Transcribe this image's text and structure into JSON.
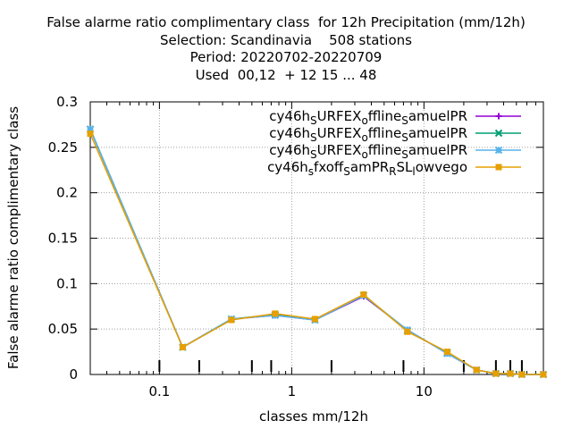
{
  "chart_data": {
    "type": "line",
    "title_lines": [
      "False alarme ratio complimentary class  for 12h Precipitation (mm/12h)",
      "Selection: Scandinavia    508 stations",
      "Period: 20220702-20220709",
      "Used  00,12  + 12 15 ... 48"
    ],
    "xlabel": "classes mm/12h",
    "ylabel": "False alarme ratio complimentary class",
    "x_scale": "log",
    "xlim": [
      0.03,
      80
    ],
    "ylim": [
      0,
      0.3
    ],
    "x_tick_labels": [
      "0.1",
      "1",
      "10"
    ],
    "x_tick_values": [
      0.1,
      1,
      10
    ],
    "y_tick_labels": [
      "0",
      "0.05",
      "0.1",
      "0.15",
      "0.2",
      "0.25",
      "0.3"
    ],
    "y_tick_values": [
      0,
      0.05,
      0.1,
      0.15,
      0.2,
      0.25,
      0.3
    ],
    "grid": true,
    "legend_position": "top-right",
    "x": [
      0.03,
      0.15,
      0.35,
      0.75,
      1.5,
      3.5,
      7.5,
      15,
      25,
      35,
      45,
      55,
      80
    ],
    "series": [
      {
        "name": "cy46h_SURFEX_offline_SamuelPR",
        "color": "#9400d3",
        "marker": "plus",
        "values": [
          0.27,
          0.03,
          0.061,
          0.065,
          0.06,
          0.086,
          0.049,
          0.023,
          0.005,
          0.001,
          0.001,
          0.0,
          0.0
        ]
      },
      {
        "name": "cy46h_SURFEX_offline_SamuelPR",
        "color": "#009e73",
        "marker": "cross",
        "values": [
          0.27,
          0.03,
          0.061,
          0.066,
          0.06,
          0.087,
          0.048,
          0.024,
          0.005,
          0.001,
          0.001,
          0.0,
          0.0
        ]
      },
      {
        "name": "cy46h_SURFEX_offline_SamuelPR",
        "color": "#56b4e9",
        "marker": "star",
        "values": [
          0.27,
          0.03,
          0.061,
          0.065,
          0.06,
          0.087,
          0.049,
          0.023,
          0.005,
          0.001,
          0.001,
          0.0,
          0.0
        ]
      },
      {
        "name": "cy46h_sfxoff_SamPR_RSL_lowvego",
        "color": "#e69f00",
        "marker": "square",
        "values": [
          0.265,
          0.03,
          0.06,
          0.067,
          0.061,
          0.088,
          0.047,
          0.025,
          0.005,
          0.001,
          0.001,
          0.0,
          0.0
        ]
      }
    ],
    "observation_count_ticks_x": [
      0.1,
      0.2,
      0.5,
      0.7,
      2,
      7,
      20,
      35,
      45,
      55
    ]
  }
}
